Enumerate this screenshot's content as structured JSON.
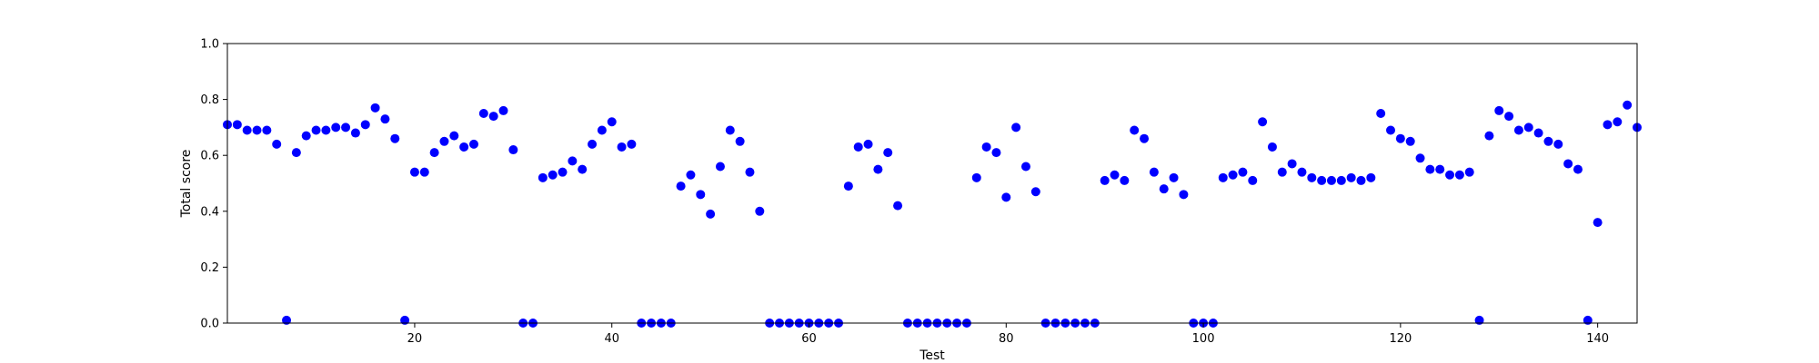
{
  "chart_data": {
    "type": "scatter",
    "title": "",
    "xlabel": "Test",
    "ylabel": "Total score",
    "xlim": [
      1,
      144
    ],
    "ylim": [
      0.0,
      1.0
    ],
    "xticks": [
      20,
      40,
      60,
      80,
      100,
      120,
      140
    ],
    "xtick_labels": [
      "20",
      "40",
      "60",
      "80",
      "100",
      "120",
      "140"
    ],
    "yticks": [
      0.0,
      0.2,
      0.4,
      0.6,
      0.8,
      1.0
    ],
    "ytick_labels": [
      "0.0",
      "0.2",
      "0.4",
      "0.6",
      "0.8",
      "1.0"
    ],
    "grid": false,
    "legend": "none",
    "marker_color": "#0000ff",
    "series": [
      {
        "x": [
          1,
          2,
          3,
          4,
          5,
          6,
          7,
          8,
          9,
          10,
          11,
          12,
          13,
          14,
          15,
          16,
          17,
          18,
          19,
          20,
          21,
          22,
          23,
          24,
          25,
          26,
          27,
          28,
          29,
          30,
          31,
          32,
          33,
          34,
          35,
          36,
          37,
          38,
          39,
          40,
          41,
          42,
          43,
          44,
          45,
          46,
          47,
          48,
          49,
          50,
          51,
          52,
          53,
          54,
          55,
          56,
          57,
          58,
          59,
          60,
          61,
          62,
          63,
          64,
          65,
          66,
          67,
          68,
          69,
          70,
          71,
          72,
          73,
          74,
          75,
          76,
          77,
          78,
          79,
          80,
          81,
          82,
          83,
          84,
          85,
          86,
          87,
          88,
          89,
          90,
          91,
          92,
          93,
          94,
          95,
          96,
          97,
          98,
          99,
          100,
          101,
          102,
          103,
          104,
          105,
          106,
          107,
          108,
          109,
          110,
          111,
          112,
          113,
          114,
          115,
          116,
          117,
          118,
          119,
          120,
          121,
          122,
          123,
          124,
          125,
          126,
          127,
          128,
          129,
          130,
          131,
          132,
          133,
          134,
          135,
          136,
          137,
          138,
          139,
          140,
          141,
          142,
          143,
          144
        ],
        "y": [
          0.71,
          0.71,
          0.69,
          0.69,
          0.69,
          0.64,
          0.01,
          0.61,
          0.67,
          0.69,
          0.69,
          0.7,
          0.7,
          0.68,
          0.71,
          0.77,
          0.73,
          0.66,
          0.01,
          0.54,
          0.54,
          0.61,
          0.65,
          0.67,
          0.63,
          0.64,
          0.75,
          0.74,
          0.76,
          0.62,
          0.0,
          0.0,
          0.52,
          0.53,
          0.54,
          0.58,
          0.55,
          0.64,
          0.69,
          0.72,
          0.63,
          0.64,
          0.0,
          0.0,
          0.0,
          0.0,
          0.49,
          0.53,
          0.46,
          0.39,
          0.56,
          0.69,
          0.65,
          0.54,
          0.4,
          0.0,
          0.0,
          0.0,
          0.0,
          0.0,
          0.0,
          0.0,
          0.0,
          0.49,
          0.63,
          0.64,
          0.55,
          0.61,
          0.42,
          0.0,
          0.0,
          0.0,
          0.0,
          0.0,
          0.0,
          0.0,
          0.52,
          0.63,
          0.61,
          0.45,
          0.7,
          0.56,
          0.47,
          0.0,
          0.0,
          0.0,
          0.0,
          0.0,
          0.0,
          0.51,
          0.53,
          0.51,
          0.69,
          0.66,
          0.54,
          0.48,
          0.52,
          0.46,
          0.0,
          0.0,
          0.0,
          0.52,
          0.53,
          0.54,
          0.51,
          0.72,
          0.63,
          0.54,
          0.57,
          0.54,
          0.52,
          0.51,
          0.51,
          0.51,
          0.52,
          0.51,
          0.52,
          0.75,
          0.69,
          0.66,
          0.65,
          0.59,
          0.55,
          0.55,
          0.53,
          0.53,
          0.54,
          0.01,
          0.67,
          0.76,
          0.74,
          0.69,
          0.7,
          0.68,
          0.65,
          0.64,
          0.57,
          0.55,
          0.01,
          0.36,
          0.71,
          0.72,
          0.78,
          0.7
        ]
      }
    ]
  }
}
